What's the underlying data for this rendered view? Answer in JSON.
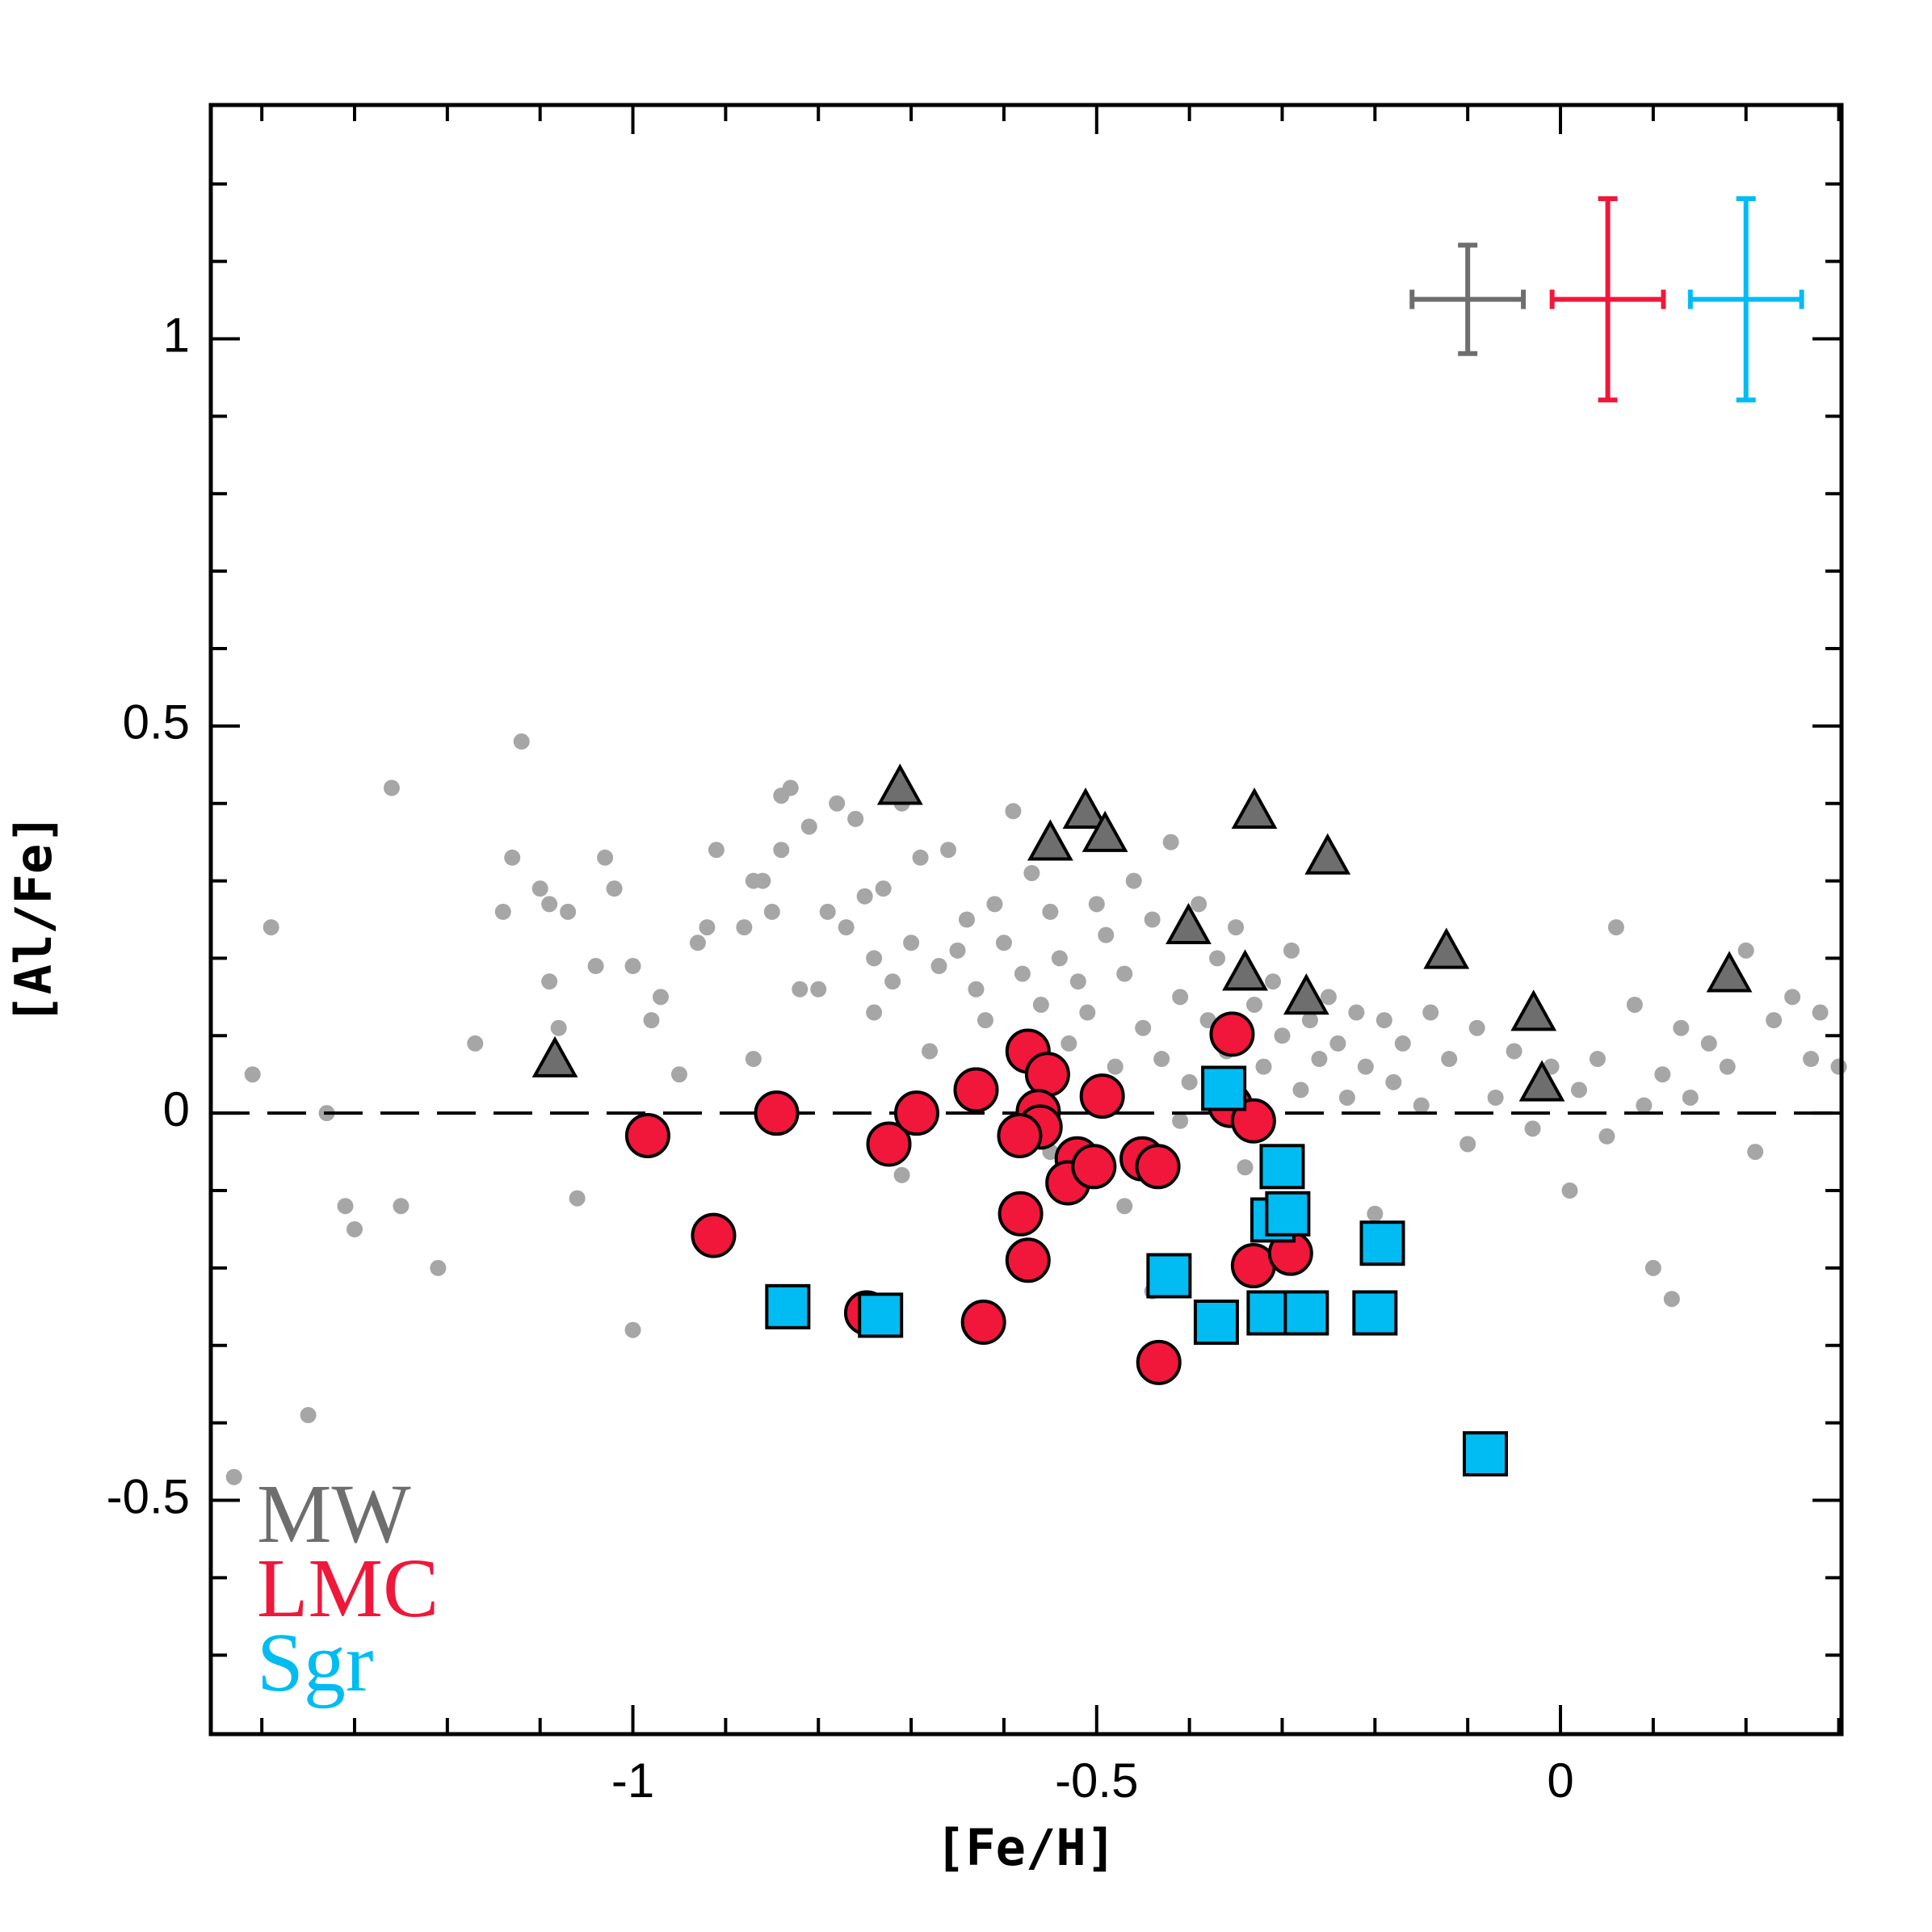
{
  "chart_data": {
    "type": "scatter",
    "xlabel": "[Fe/H]",
    "ylabel": "[Al/Fe]",
    "xlim": [
      -1.455,
      0.303
    ],
    "ylim": [
      -0.802,
      1.302
    ],
    "xticks": [
      -1,
      -0.5,
      0
    ],
    "yticks": [
      -0.5,
      0,
      0.5,
      1
    ],
    "xminor": [
      -1.4,
      -1.3,
      -1.2,
      -1.1,
      -0.9,
      -0.8,
      -0.7,
      -0.6,
      -0.4,
      -0.3,
      -0.2,
      -0.1,
      0.1,
      0.2,
      0.3
    ],
    "yminor": [
      -0.7,
      -0.6,
      -0.4,
      -0.3,
      -0.2,
      -0.1,
      0.1,
      0.2,
      0.3,
      0.4,
      0.6,
      0.7,
      0.8,
      0.9,
      1.1,
      1.2
    ],
    "hline": 0,
    "background": {
      "color": "#a6a6a6",
      "x": [
        -1.43,
        -1.39,
        -1.41,
        -1.35,
        -1.33,
        -1.31,
        -1.3,
        -1.26,
        -1.25,
        -1.21,
        -1.17,
        -1.14,
        -1.13,
        -1.12,
        -1.1,
        -1.09,
        -1.09,
        -1.08,
        -1.07,
        -1.06,
        -1.04,
        -1.03,
        -1.02,
        -1.0,
        -1.0,
        -0.98,
        -0.97,
        -0.95,
        -0.93,
        -0.92,
        -0.91,
        -0.88,
        -0.87,
        -0.87,
        -0.86,
        -0.85,
        -0.84,
        -0.84,
        -0.83,
        -0.82,
        -0.81,
        -0.8,
        -0.79,
        -0.78,
        -0.77,
        -0.76,
        -0.75,
        -0.74,
        -0.74,
        -0.73,
        -0.72,
        -0.71,
        -0.7,
        -0.69,
        -0.68,
        -0.67,
        -0.66,
        -0.65,
        -0.64,
        -0.63,
        -0.62,
        -0.61,
        -0.6,
        -0.59,
        -0.58,
        -0.57,
        -0.56,
        -0.55,
        -0.54,
        -0.53,
        -0.52,
        -0.51,
        -0.5,
        -0.49,
        -0.48,
        -0.47,
        -0.46,
        -0.45,
        -0.44,
        -0.43,
        -0.42,
        -0.41,
        -0.4,
        -0.39,
        -0.38,
        -0.37,
        -0.36,
        -0.35,
        -0.34,
        -0.33,
        -0.32,
        -0.31,
        -0.3,
        -0.29,
        -0.28,
        -0.27,
        -0.26,
        -0.25,
        -0.24,
        -0.23,
        -0.22,
        -0.21,
        -0.2,
        -0.19,
        -0.18,
        -0.17,
        -0.15,
        -0.14,
        -0.12,
        -0.1,
        -0.09,
        -0.07,
        -0.05,
        -0.03,
        -0.01,
        0.01,
        0.02,
        0.04,
        0.05,
        0.06,
        0.08,
        0.09,
        0.1,
        0.11,
        0.12,
        0.13,
        0.14,
        0.16,
        0.18,
        0.2,
        0.21,
        0.23,
        0.25,
        0.27,
        0.28,
        0.3,
        -0.58,
        -0.47,
        -0.44,
        -0.41,
        -0.55,
        -0.71
      ],
      "values": [
        -0.47,
        0.24,
        0.05,
        -0.39,
        0,
        -0.12,
        -0.15,
        0.42,
        -0.12,
        -0.2,
        0.09,
        0.26,
        0.33,
        0.48,
        0.29,
        0.27,
        0.17,
        0.11,
        0.26,
        -0.11,
        0.19,
        0.33,
        0.29,
        0.19,
        -0.28,
        0.12,
        0.15,
        0.05,
        0.22,
        0.24,
        0.34,
        0.24,
        0.3,
        0.07,
        0.3,
        0.26,
        0.34,
        0.41,
        0.42,
        0.16,
        0.37,
        0.16,
        0.26,
        0.4,
        0.24,
        0.38,
        0.28,
        0.2,
        0.13,
        0.29,
        0.17,
        0.4,
        0.22,
        0.33,
        0.08,
        0.19,
        0.34,
        0.21,
        0.25,
        0.16,
        0.12,
        0.27,
        0.22,
        0.39,
        0.18,
        0.31,
        0.14,
        0.26,
        0.2,
        0.09,
        0.17,
        0.13,
        0.27,
        0.23,
        0.06,
        0.18,
        0.3,
        0.11,
        0.25,
        0.07,
        0.35,
        0.15,
        0.04,
        0.27,
        0.12,
        0.2,
        0.08,
        0.24,
        -0.07,
        0.14,
        0.06,
        0.17,
        0.1,
        0.21,
        0.03,
        0.12,
        0.07,
        0.15,
        0.09,
        0.02,
        0.13,
        0.06,
        -0.13,
        0.12,
        0.04,
        0.09,
        0.01,
        0.13,
        0.07,
        -0.04,
        0.11,
        0.02,
        0.08,
        -0.02,
        0.06,
        -0.1,
        0.03,
        0.07,
        -0.03,
        0.24,
        0.14,
        0.01,
        -0.2,
        0.05,
        -0.24,
        0.11,
        0.02,
        0.09,
        0.06,
        0.21,
        -0.05,
        0.12,
        0.15,
        0.07,
        0.13,
        0.06,
        -0.12,
        -0.12,
        -0.23,
        -0.01,
        -0.05,
        -0.08
      ]
    },
    "series": [
      {
        "name": "MW",
        "color": "#6e6e6e",
        "marker": "triangle",
        "x": [
          -1.084,
          -0.712,
          -0.55,
          -0.512,
          -0.491,
          -0.401,
          -0.34,
          -0.33,
          -0.274,
          -0.251,
          -0.123,
          -0.029,
          -0.02,
          0.182
        ],
        "values": [
          0.066,
          0.418,
          0.346,
          0.387,
          0.357,
          0.238,
          0.178,
          0.387,
          0.147,
          0.328,
          0.206,
          0.126,
          0.035,
          0.176
        ]
      },
      {
        "name": "LMC",
        "color": "#f0173a",
        "marker": "circle",
        "x": [
          -0.984,
          -0.845,
          -0.913,
          -0.724,
          -0.694,
          -0.748,
          -0.63,
          -0.622,
          -0.574,
          -0.553,
          -0.563,
          -0.561,
          -0.583,
          -0.582,
          -0.574,
          -0.521,
          -0.531,
          -0.503,
          -0.494,
          -0.451,
          -0.434,
          -0.433,
          -0.354,
          -0.356,
          -0.331,
          -0.331,
          -0.291
        ],
        "values": [
          -0.029,
          0,
          -0.158,
          -0.04,
          0,
          -0.258,
          0.03,
          -0.27,
          0.08,
          0.05,
          0.002,
          -0.018,
          -0.029,
          -0.13,
          -0.19,
          -0.059,
          -0.09,
          -0.069,
          0.022,
          -0.059,
          -0.069,
          -0.322,
          0.102,
          0.01,
          -0.01,
          -0.197,
          -0.181
        ]
      },
      {
        "name": "Sgr",
        "color": "#00bcf2",
        "marker": "square",
        "x": [
          -0.833,
          -0.733,
          -0.422,
          -0.371,
          -0.363,
          -0.3,
          -0.31,
          -0.294,
          -0.314,
          -0.274,
          -0.2,
          -0.192,
          -0.081
        ],
        "values": [
          -0.25,
          -0.261,
          -0.21,
          -0.27,
          0.032,
          -0.069,
          -0.138,
          -0.13,
          -0.258,
          -0.258,
          -0.258,
          -0.168,
          -0.44
        ]
      }
    ],
    "error_bars": [
      {
        "color": "#6e6e6e",
        "x": -0.1,
        "y": 1.051,
        "xerr": 0.06,
        "yerr": 0.07
      },
      {
        "color": "#f0173a",
        "x": 0.051,
        "y": 1.051,
        "xerr": 0.06,
        "yerr": 0.13
      },
      {
        "color": "#00bcf2",
        "x": 0.2,
        "y": 1.051,
        "xerr": 0.06,
        "yerr": 0.13
      }
    ]
  }
}
